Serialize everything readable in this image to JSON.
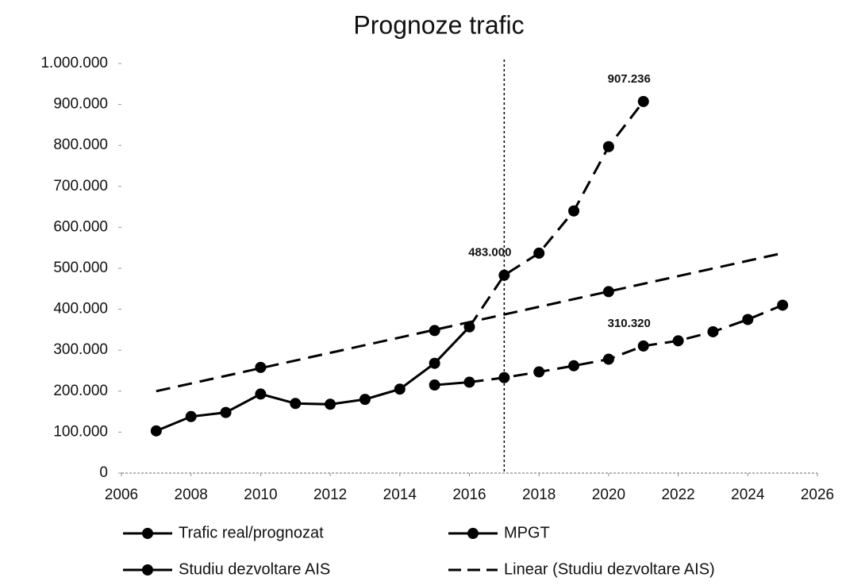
{
  "chart_data": {
    "type": "line",
    "title": "Prognoze trafic",
    "xlim": [
      2006,
      2026
    ],
    "xticks": [
      2006,
      2008,
      2010,
      2012,
      2014,
      2016,
      2018,
      2020,
      2022,
      2024,
      2026
    ],
    "ylim": [
      0,
      1000000
    ],
    "yticks": [
      0,
      {
        "value": 100000,
        "label": "100.000"
      },
      {
        "value": 200000,
        "label": "200.000"
      },
      {
        "value": 300000,
        "label": "300.000"
      },
      {
        "value": 400000,
        "label": "400.000"
      },
      {
        "value": 500000,
        "label": "500.000"
      },
      {
        "value": 600000,
        "label": "600.000"
      },
      {
        "value": 700000,
        "label": "700.000"
      },
      {
        "value": 800000,
        "label": "800.000"
      },
      {
        "value": 900000,
        "label": "900.000"
      },
      {
        "value": 1000000,
        "label": "1.000.000"
      }
    ],
    "vline": 2017,
    "grid": false,
    "series": [
      {
        "name": "Trafic real/prognozat",
        "color": "#000000",
        "style": "line-markers",
        "x": [
          2007,
          2008,
          2009,
          2010,
          2011,
          2012,
          2013,
          2014,
          2015,
          2016,
          2017,
          2018,
          2019,
          2020,
          2021
        ],
        "values": [
          103000,
          138000,
          148000,
          193000,
          170000,
          168000,
          180000,
          205000,
          268000,
          357000,
          483000,
          537000,
          640000,
          797000,
          907236
        ],
        "value_labels": [
          null,
          null,
          null,
          null,
          null,
          null,
          null,
          null,
          null,
          null,
          "483.000",
          null,
          null,
          null,
          "907.236"
        ]
      },
      {
        "name": "MPGT",
        "color": "#000000",
        "style": "line-markers",
        "x": [
          2015,
          2016,
          2017,
          2018,
          2019,
          2020,
          2021,
          2022,
          2023,
          2024,
          2025
        ],
        "values": [
          215000,
          222000,
          233000,
          247000,
          262000,
          278000,
          310320,
          323000,
          345000,
          375000,
          410000
        ],
        "value_labels": [
          null,
          null,
          null,
          null,
          null,
          null,
          "310.320",
          null,
          null,
          null,
          null
        ]
      },
      {
        "name": "Studiu dezvoltare AIS",
        "color": "#000000",
        "style": "markers",
        "x": [
          2010,
          2015,
          2020
        ],
        "values": [
          258000,
          348000,
          443000
        ]
      },
      {
        "name": "Linear (Studiu dezvoltare AIS)",
        "color": "#000000",
        "style": "dashed",
        "x": [
          2007,
          2025
        ],
        "values": [
          200000,
          537000
        ]
      }
    ]
  }
}
